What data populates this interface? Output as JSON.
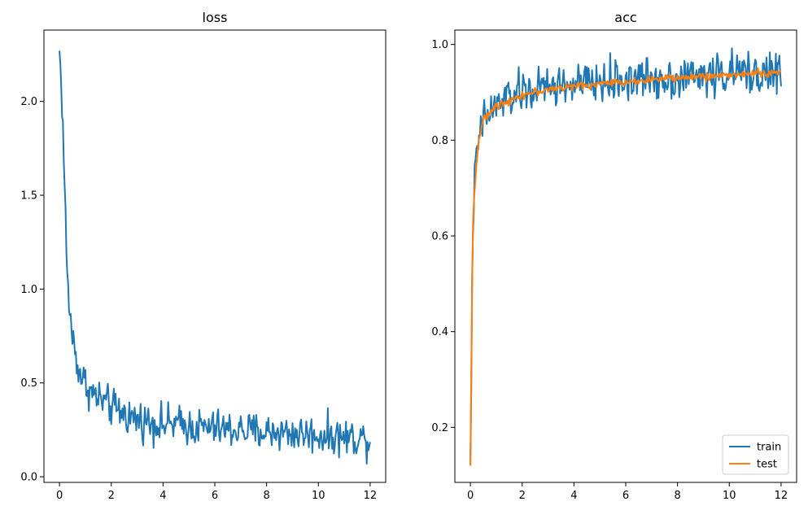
{
  "chart_data": [
    {
      "type": "line",
      "title": "loss",
      "xlabel": "",
      "ylabel": "",
      "xlim": [
        -0.6,
        12.6
      ],
      "ylim": [
        -0.03,
        2.38
      ],
      "xticks": [
        0,
        2,
        4,
        6,
        8,
        10,
        12
      ],
      "yticks": [
        0.0,
        0.5,
        1.0,
        1.5,
        2.0
      ],
      "xtick_labels": [
        "0",
        "2",
        "4",
        "6",
        "8",
        "10",
        "12"
      ],
      "ytick_labels": [
        "0.0",
        "0.5",
        "1.0",
        "1.5",
        "2.0"
      ],
      "grid": false,
      "legend": false,
      "series": [
        {
          "color": "#1f77b4",
          "x": [
            0.0,
            0.1,
            0.2,
            0.3,
            0.4,
            0.5,
            0.6,
            0.7,
            0.8,
            0.9,
            1.0,
            1.2,
            1.4,
            1.6,
            1.8,
            2.0,
            2.3,
            2.6,
            2.9,
            3.2,
            3.6,
            4.0,
            4.5,
            5.0,
            5.5,
            6.0,
            6.5,
            7.0,
            7.5,
            8.0,
            8.5,
            9.0,
            9.5,
            10.0,
            10.5,
            11.0,
            11.5,
            12.0
          ],
          "values": [
            2.27,
            2.0,
            1.55,
            1.05,
            0.88,
            0.75,
            0.67,
            0.6,
            0.55,
            0.52,
            0.5,
            0.45,
            0.43,
            0.41,
            0.39,
            0.37,
            0.35,
            0.33,
            0.31,
            0.3,
            0.29,
            0.28,
            0.28,
            0.27,
            0.26,
            0.26,
            0.25,
            0.25,
            0.24,
            0.24,
            0.24,
            0.23,
            0.23,
            0.22,
            0.22,
            0.21,
            0.21,
            0.2
          ]
        }
      ]
    },
    {
      "type": "line",
      "title": "acc",
      "xlabel": "",
      "ylabel": "",
      "xlim": [
        -0.6,
        12.6
      ],
      "ylim": [
        0.085,
        1.03
      ],
      "xticks": [
        0,
        2,
        4,
        6,
        8,
        10,
        12
      ],
      "yticks": [
        0.2,
        0.4,
        0.6,
        0.8,
        1.0
      ],
      "xtick_labels": [
        "0",
        "2",
        "4",
        "6",
        "8",
        "10",
        "12"
      ],
      "ytick_labels": [
        "0.2",
        "0.4",
        "0.6",
        "0.8",
        "1.0"
      ],
      "grid": false,
      "legend": "lower right",
      "series": [
        {
          "name": "train",
          "color": "#1f77b4",
          "x": [
            0.0,
            0.05,
            0.1,
            0.2,
            0.3,
            0.4,
            0.5,
            0.6,
            0.8,
            1.0,
            1.2,
            1.5,
            2.0,
            2.5,
            3.0,
            3.5,
            4.0,
            5.0,
            6.0,
            7.0,
            8.0,
            9.0,
            10.0,
            11.0,
            12.0
          ],
          "values": [
            0.12,
            0.4,
            0.64,
            0.74,
            0.79,
            0.82,
            0.84,
            0.85,
            0.86,
            0.87,
            0.88,
            0.89,
            0.9,
            0.905,
            0.91,
            0.915,
            0.915,
            0.92,
            0.925,
            0.93,
            0.93,
            0.935,
            0.94,
            0.94,
            0.94
          ]
        },
        {
          "name": "test",
          "color": "#ff7f0e",
          "x": [
            0.0,
            0.05,
            0.1,
            0.2,
            0.3,
            0.4,
            0.5,
            0.7,
            1.0,
            1.3,
            1.6,
            2.0,
            2.5,
            3.0,
            3.5,
            4.0,
            5.0,
            6.0,
            7.0,
            8.0,
            9.0,
            10.0,
            11.0,
            12.0
          ],
          "values": [
            0.12,
            0.42,
            0.63,
            0.73,
            0.79,
            0.82,
            0.84,
            0.855,
            0.87,
            0.88,
            0.885,
            0.895,
            0.9,
            0.905,
            0.91,
            0.912,
            0.918,
            0.922,
            0.927,
            0.93,
            0.933,
            0.936,
            0.94,
            0.94
          ]
        }
      ]
    }
  ]
}
